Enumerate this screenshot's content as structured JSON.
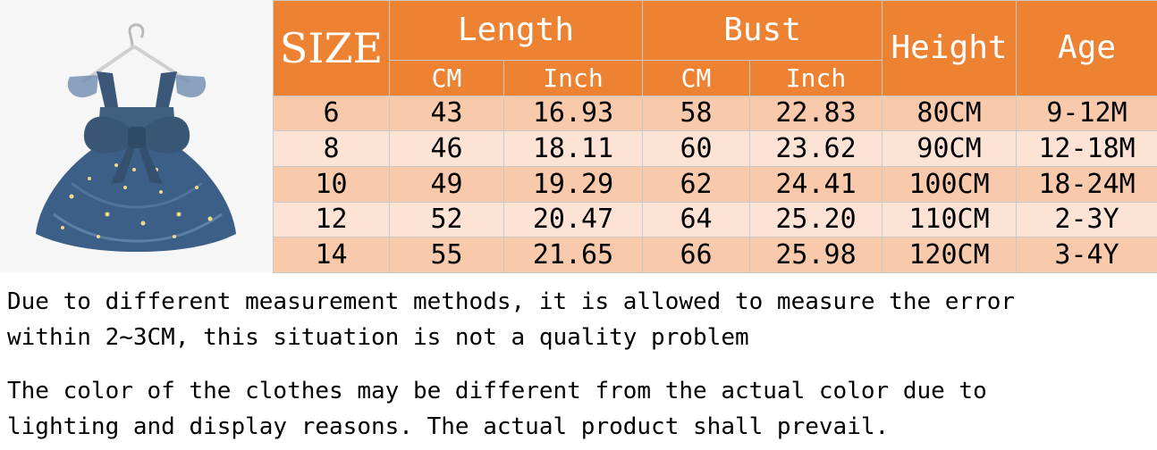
{
  "table": {
    "header": {
      "size": "SIZE",
      "length": "Length",
      "bust": "Bust",
      "height": "Height",
      "age": "Age",
      "length_cm": "CM",
      "length_inch": "Inch",
      "bust_cm": "CM",
      "bust_inch": "Inch"
    },
    "rows": [
      {
        "size": "6",
        "length_cm": "43",
        "length_inch": "16.93",
        "bust_cm": "58",
        "bust_inch": "22.83",
        "height": "80CM",
        "age": "9-12M"
      },
      {
        "size": "8",
        "length_cm": "46",
        "length_inch": "18.11",
        "bust_cm": "60",
        "bust_inch": "23.62",
        "height": "90CM",
        "age": "12-18M"
      },
      {
        "size": "10",
        "length_cm": "49",
        "length_inch": "19.29",
        "bust_cm": "62",
        "bust_inch": "24.41",
        "height": "100CM",
        "age": "18-24M"
      },
      {
        "size": "12",
        "length_cm": "52",
        "length_inch": "20.47",
        "bust_cm": "64",
        "bust_inch": "25.20",
        "height": "110CM",
        "age": "2-3Y"
      },
      {
        "size": "14",
        "length_cm": "55",
        "length_inch": "21.65",
        "bust_cm": "66",
        "bust_inch": "25.98",
        "height": "120CM",
        "age": "3-4Y"
      }
    ]
  },
  "notes": {
    "note1_line1": "Due to different measurement methods, it is allowed to measure the error",
    "note1_line2": "within 2~3CM, this situation is not a quality problem",
    "note2_line1": "The color of the clothes may be different from the actual color due to",
    "note2_line2": "lighting and display reasons. The actual product shall prevail."
  },
  "colors": {
    "header_bg": "#ee8233",
    "row_dark": "#f9c9ab",
    "row_light": "#fde3d5",
    "dress": "#3f5c7e"
  },
  "photo": {
    "icon": "baby-dress-with-bow-on-hanger"
  }
}
